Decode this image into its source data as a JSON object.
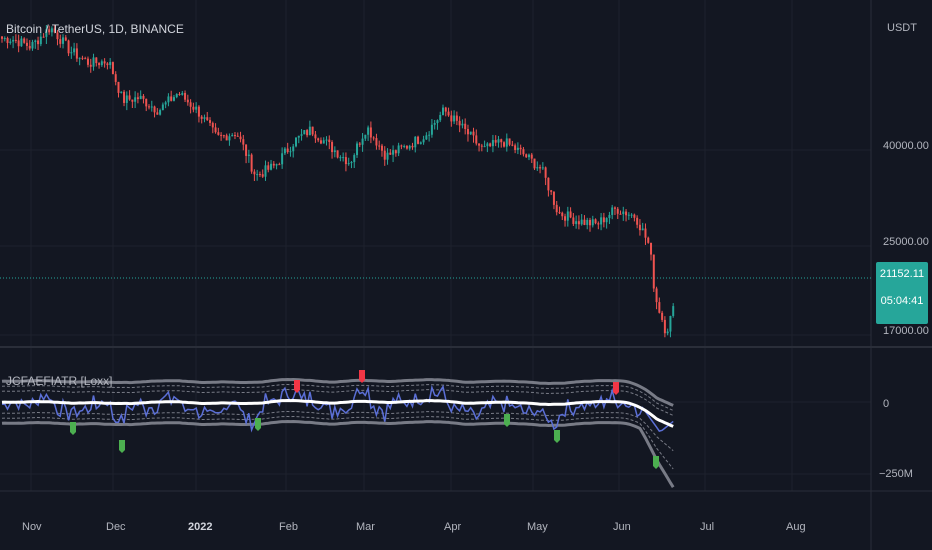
{
  "header": {
    "symbol_title": "Bitcoin / TetherUS, 1D, BINANCE",
    "currency": "USDT"
  },
  "indicator": {
    "title": "JCFAEFIATR [Loxx]",
    "ticks": [
      "0",
      "−250M"
    ]
  },
  "price_axis": {
    "labels": [
      "40000.00",
      "25000.00",
      "17000.00"
    ],
    "last_price": "21152.11",
    "countdown": "05:04:41"
  },
  "time_axis": {
    "labels": [
      "Nov",
      "Dec",
      "2022",
      "Feb",
      "Mar",
      "Apr",
      "May",
      "Jun",
      "Jul",
      "Aug"
    ]
  },
  "colors": {
    "background": "#131722",
    "up_candle": "#26a69a",
    "down_candle": "#ef5350",
    "indicator_fast": "#5b6fd6",
    "indicator_slow": "#ffffff",
    "band": "#787b86",
    "buy_marker": "#4caf50",
    "sell_marker": "#f23645"
  },
  "chart_data": {
    "type": "candlestick",
    "title": "Bitcoin / TetherUS, 1D, BINANCE",
    "y_unit": "USDT",
    "y_scale": "log",
    "y_ticks": [
      40000,
      25000,
      17000
    ],
    "x_ticks": [
      "Nov",
      "Dec",
      "2022",
      "Feb",
      "Mar",
      "Apr",
      "May",
      "Jun",
      "Jul",
      "Aug"
    ],
    "last_price": 21152.11,
    "close_series": [
      [
        "2021-10-25",
        63000
      ],
      [
        "2021-11-01",
        61000
      ],
      [
        "2021-11-08",
        66000
      ],
      [
        "2021-11-15",
        60000
      ],
      [
        "2021-11-22",
        57000
      ],
      [
        "2021-11-29",
        57500
      ],
      [
        "2021-12-04",
        49000
      ],
      [
        "2021-12-10",
        49500
      ],
      [
        "2021-12-17",
        47000
      ],
      [
        "2021-12-24",
        50500
      ],
      [
        "2021-12-31",
        47000
      ],
      [
        "2022-01-07",
        42000
      ],
      [
        "2022-01-14",
        43000
      ],
      [
        "2022-01-21",
        36000
      ],
      [
        "2022-01-28",
        37500
      ],
      [
        "2022-02-04",
        41500
      ],
      [
        "2022-02-10",
        43500
      ],
      [
        "2022-02-17",
        40500
      ],
      [
        "2022-02-24",
        38000
      ],
      [
        "2022-03-02",
        44000
      ],
      [
        "2022-03-09",
        39000
      ],
      [
        "2022-03-16",
        40500
      ],
      [
        "2022-03-23",
        42500
      ],
      [
        "2022-03-30",
        47000
      ],
      [
        "2022-04-06",
        43500
      ],
      [
        "2022-04-13",
        40000
      ],
      [
        "2022-04-20",
        41500
      ],
      [
        "2022-04-27",
        39500
      ],
      [
        "2022-05-04",
        37000
      ],
      [
        "2022-05-10",
        31000
      ],
      [
        "2022-05-17",
        30000
      ],
      [
        "2022-05-24",
        29500
      ],
      [
        "2022-05-31",
        31500
      ],
      [
        "2022-06-07",
        30500
      ],
      [
        "2022-06-12",
        27000
      ],
      [
        "2022-06-14",
        22000
      ],
      [
        "2022-06-18",
        19000
      ],
      [
        "2022-06-21",
        21152.11
      ]
    ],
    "indicator": {
      "name": "JCFAEFIATR [Loxx]",
      "y_ticks": [
        0,
        -250000000
      ]
    }
  }
}
